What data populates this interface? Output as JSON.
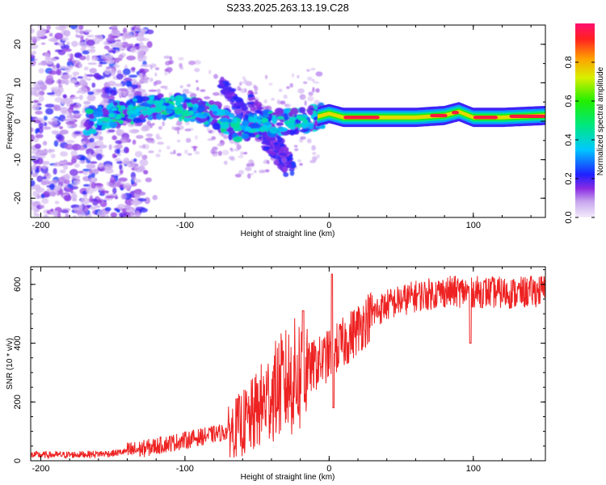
{
  "title": "S233.2025.263.13.19.C28",
  "chart_data": [
    {
      "type": "heatmap",
      "xlabel": "Height of straight line (km)",
      "ylabel": "Frequency (Hz)",
      "xlim": [
        -207,
        150
      ],
      "ylim": [
        -25,
        25
      ],
      "xticks": [
        -200,
        -100,
        0,
        100
      ],
      "yticks": [
        -20,
        -10,
        0,
        10,
        20
      ],
      "xtick_labels": [
        "-200",
        "-100",
        "0",
        "100"
      ],
      "ytick_labels": [
        "-20",
        "-10",
        "0",
        "10",
        "20"
      ],
      "colorbar": {
        "label": "Normalized spectral amplitude",
        "range": [
          0.0,
          1.0
        ],
        "ticks": [
          0.0,
          0.2,
          0.4,
          0.6,
          0.8
        ],
        "tick_labels": [
          "0.0",
          "0.2",
          "0.4",
          "0.6",
          "0.8"
        ]
      },
      "ridge_center_hz": [
        [
          -207,
          null
        ],
        [
          -165,
          0
        ],
        [
          -150,
          2
        ],
        [
          -130,
          3
        ],
        [
          -110,
          4
        ],
        [
          -95,
          3
        ],
        [
          -80,
          2
        ],
        [
          -65,
          -2
        ],
        [
          -50,
          -1
        ],
        [
          -35,
          0
        ],
        [
          -20,
          0
        ],
        [
          -10,
          1
        ],
        [
          0,
          2
        ],
        [
          10,
          1
        ],
        [
          30,
          1
        ],
        [
          60,
          1
        ],
        [
          80,
          1.5
        ],
        [
          90,
          2.5
        ],
        [
          100,
          1
        ],
        [
          120,
          1
        ],
        [
          150,
          1.5
        ]
      ]
    },
    {
      "type": "line",
      "xlabel": "Height of straight line (km)",
      "ylabel": "SNR (10 * v/v)",
      "xlim": [
        -207,
        150
      ],
      "ylim": [
        0,
        660
      ],
      "xticks": [
        -200,
        -100,
        0,
        100
      ],
      "yticks": [
        0,
        200,
        400,
        600
      ],
      "xtick_labels": [
        "-200",
        "-100",
        "0",
        "100"
      ],
      "ytick_labels": [
        "0",
        "200",
        "400",
        "600"
      ],
      "series": [
        {
          "name": "SNR",
          "color": "#ee2222",
          "trend": [
            [
              -207,
              20
            ],
            [
              -180,
              20
            ],
            [
              -150,
              25
            ],
            [
              -130,
              40
            ],
            [
              -110,
              60
            ],
            [
              -90,
              80
            ],
            [
              -70,
              100
            ],
            [
              -55,
              140
            ],
            [
              -45,
              200
            ],
            [
              -35,
              250
            ],
            [
              -25,
              280
            ],
            [
              -15,
              310
            ],
            [
              -5,
              340
            ],
            [
              0,
              360
            ],
            [
              10,
              400
            ],
            [
              20,
              450
            ],
            [
              30,
              500
            ],
            [
              40,
              530
            ],
            [
              60,
              560
            ],
            [
              80,
              575
            ],
            [
              100,
              575
            ],
            [
              130,
              570
            ],
            [
              150,
              580
            ]
          ],
          "features": [
            {
              "x": 2,
              "y": 635,
              "kind": "spike"
            },
            {
              "x": 3,
              "y": 180,
              "kind": "dip"
            },
            {
              "x": 98,
              "y": 400,
              "kind": "dip"
            },
            {
              "x": -18,
              "y": 510,
              "kind": "spike"
            }
          ]
        }
      ]
    }
  ]
}
